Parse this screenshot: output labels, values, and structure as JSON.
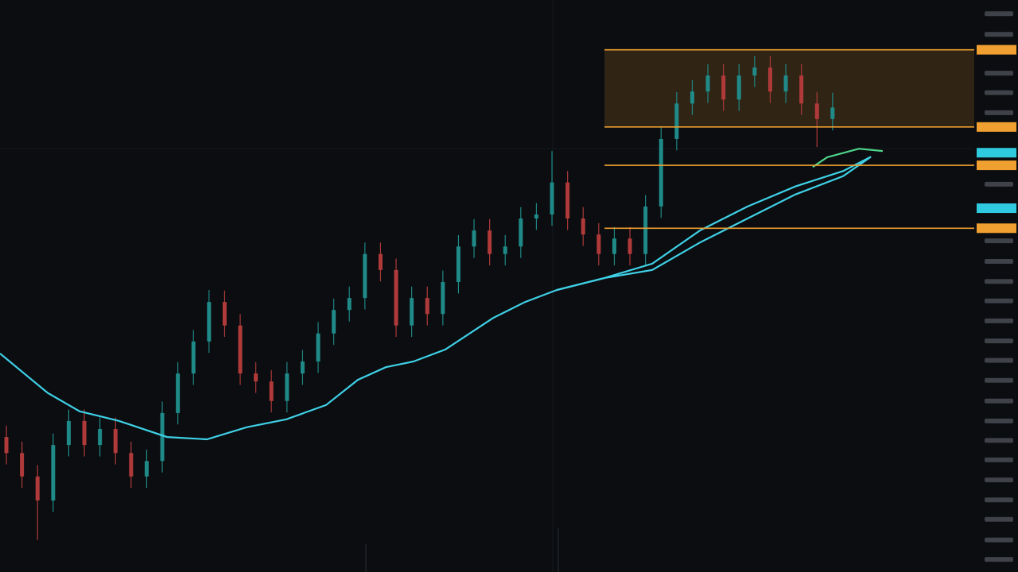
{
  "chart_data": {
    "type": "candlestick",
    "xlim": [
      -0.41,
      62.09
    ],
    "ylim": [
      0,
      100
    ],
    "open": [
      23.6,
      20.8,
      16.7,
      12.5,
      22.2,
      26.4,
      22.2,
      25,
      20.8,
      16.7,
      19.4,
      27.8,
      34.7,
      40.3,
      47.2,
      43.1,
      34.7,
      33.3,
      29.9,
      34.7,
      36.8,
      41.7,
      45.8,
      47.9,
      55.6,
      52.8,
      43.1,
      47.9,
      45.1,
      50.7,
      56.9,
      59.7,
      55.6,
      56.9,
      61.8,
      62.5,
      68.1,
      61.8,
      59,
      55.6,
      58.3,
      55.6,
      63.9,
      75.7,
      81.9,
      84,
      86.8,
      82.6,
      86.8,
      88.2,
      84,
      86.8,
      81.9,
      79.2
    ],
    "high": [
      25.6,
      22.8,
      18.7,
      24.2,
      28.4,
      28.4,
      27,
      27,
      22.8,
      21.4,
      29.8,
      36.7,
      42.3,
      49.3,
      49.2,
      45.1,
      36.7,
      35.3,
      36.7,
      38.8,
      43.7,
      47.8,
      49.9,
      57.6,
      57.6,
      54.8,
      49.9,
      49.9,
      52.7,
      58.9,
      61.7,
      61.7,
      58.9,
      63.8,
      64.5,
      73.6,
      70.1,
      63.8,
      61,
      60.3,
      60.3,
      65.9,
      77.7,
      83.9,
      86,
      88.8,
      88.8,
      88.8,
      90.2,
      90.2,
      88.8,
      88.8,
      83.9,
      83.8
    ],
    "low": [
      18.8,
      14.7,
      5.6,
      10.5,
      20.2,
      20.2,
      20.2,
      18.8,
      14.7,
      14.7,
      17.4,
      25.8,
      32.7,
      38.3,
      41.1,
      32.7,
      31.3,
      27.9,
      27.9,
      32.7,
      34.8,
      39.7,
      43.8,
      45.9,
      50.8,
      41.1,
      41.1,
      43.1,
      43.1,
      48.7,
      54.9,
      53.6,
      53.6,
      54.9,
      59.8,
      60.5,
      59.8,
      57,
      53.6,
      53.6,
      53.6,
      53.6,
      61.9,
      73.7,
      79.9,
      82,
      80.6,
      80.6,
      84.8,
      82,
      82,
      79.9,
      74.3,
      77.2
    ],
    "close": [
      20.8,
      16.7,
      12.5,
      22.2,
      26.4,
      22.2,
      25,
      20.8,
      16.7,
      19.4,
      27.8,
      34.7,
      40.3,
      47.2,
      43.1,
      34.7,
      33.3,
      29.9,
      34.7,
      36.8,
      41.7,
      45.8,
      47.9,
      55.6,
      52.8,
      43.1,
      47.9,
      45.1,
      50.7,
      56.9,
      59.7,
      55.6,
      56.9,
      61.8,
      62.5,
      68.1,
      61.8,
      59,
      55.6,
      58.3,
      55.6,
      63.9,
      75.7,
      81.9,
      84,
      86.8,
      82.6,
      86.8,
      88.2,
      84,
      86.8,
      81.9,
      79.2,
      81.2
    ],
    "up_color": "#1f8a87",
    "down_color": "#b03a3a",
    "lines": [
      {
        "color": "#3fd0e6",
        "x": [
          -0.41,
          2.65,
          4.69,
          7.24,
          10.31,
          12.86,
          15.41,
          17.96,
          20.51,
          22.55,
          24.34,
          26.12,
          28.16,
          31.22,
          33.27,
          35.31,
          38.37,
          41.43,
          44.49,
          47.55,
          50.61,
          53.67,
          55.46
        ],
        "values": [
          38.2,
          31.3,
          28.1,
          26.4,
          23.6,
          23.2,
          25.3,
          26.7,
          29.2,
          33.6,
          35.8,
          36.8,
          38.9,
          44.4,
          47.2,
          49.3,
          51.4,
          53.9,
          59.7,
          63.9,
          67.4,
          70.1,
          72.6
        ]
      },
      {
        "color": "#3fd0e6",
        "x": [
          35.31,
          38.37,
          41.43,
          44.49,
          47.55,
          50.61,
          53.67,
          55.46
        ],
        "values": [
          49.3,
          51.4,
          52.8,
          57.6,
          61.8,
          66,
          69.2,
          72.6
        ]
      },
      {
        "color": "#4fd68a",
        "x": [
          51.73,
          52.65,
          54.69,
          56.22
        ],
        "values": [
          70.8,
          72.5,
          74,
          73.6
        ]
      }
    ],
    "levels": [
      91.3,
      77.8,
      71.1,
      60.1
    ],
    "level_start": 38.37,
    "level_color": "#f0a030",
    "zone": [
      77.8,
      91.3
    ],
    "markers": [
      73.3,
      63.6
    ],
    "marker_color": "#2fc9e0",
    "yticks": [
      97.6,
      94.0,
      87.2,
      83.8,
      80.3,
      67.8,
      57.9,
      54.3,
      50.8,
      47.4,
      43.9,
      40.4,
      37.0,
      33.5,
      29.9,
      26.4,
      23.0,
      19.6,
      16.1,
      12.6,
      9.2,
      5.6,
      2.2
    ]
  }
}
